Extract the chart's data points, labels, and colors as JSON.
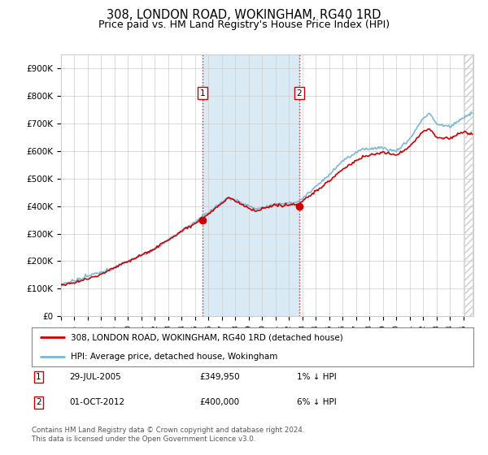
{
  "title": "308, LONDON ROAD, WOKINGHAM, RG40 1RD",
  "subtitle": "Price paid vs. HM Land Registry's House Price Index (HPI)",
  "ylim": [
    0,
    950000
  ],
  "yticks": [
    0,
    100000,
    200000,
    300000,
    400000,
    500000,
    600000,
    700000,
    800000,
    900000
  ],
  "ytick_labels": [
    "£0",
    "£100K",
    "£200K",
    "£300K",
    "£400K",
    "£500K",
    "£600K",
    "£700K",
    "£800K",
    "£900K"
  ],
  "xlim_start": 1995.0,
  "xlim_end": 2025.75,
  "purchase1_x": 2005.57,
  "purchase1_y": 349950,
  "purchase2_x": 2012.75,
  "purchase2_y": 400000,
  "hpi_line_color": "#7ab8d9",
  "price_line_color": "#cc0000",
  "shaded_region_color": "#daeaf5",
  "marker_color": "#cc0000",
  "grid_color": "#cccccc",
  "background_color": "#ffffff",
  "hatch_color": "#cccccc",
  "legend_line1": "308, LONDON ROAD, WOKINGHAM, RG40 1RD (detached house)",
  "legend_line2": "HPI: Average price, detached house, Wokingham",
  "purchase1_date": "29-JUL-2005",
  "purchase1_price": "£349,950",
  "purchase1_hpi": "1% ↓ HPI",
  "purchase2_date": "01-OCT-2012",
  "purchase2_price": "£400,000",
  "purchase2_hpi": "6% ↓ HPI",
  "footer": "Contains HM Land Registry data © Crown copyright and database right 2024.\nThis data is licensed under the Open Government Licence v3.0.",
  "title_fontsize": 10.5,
  "subtitle_fontsize": 9,
  "tick_fontsize": 7.5
}
